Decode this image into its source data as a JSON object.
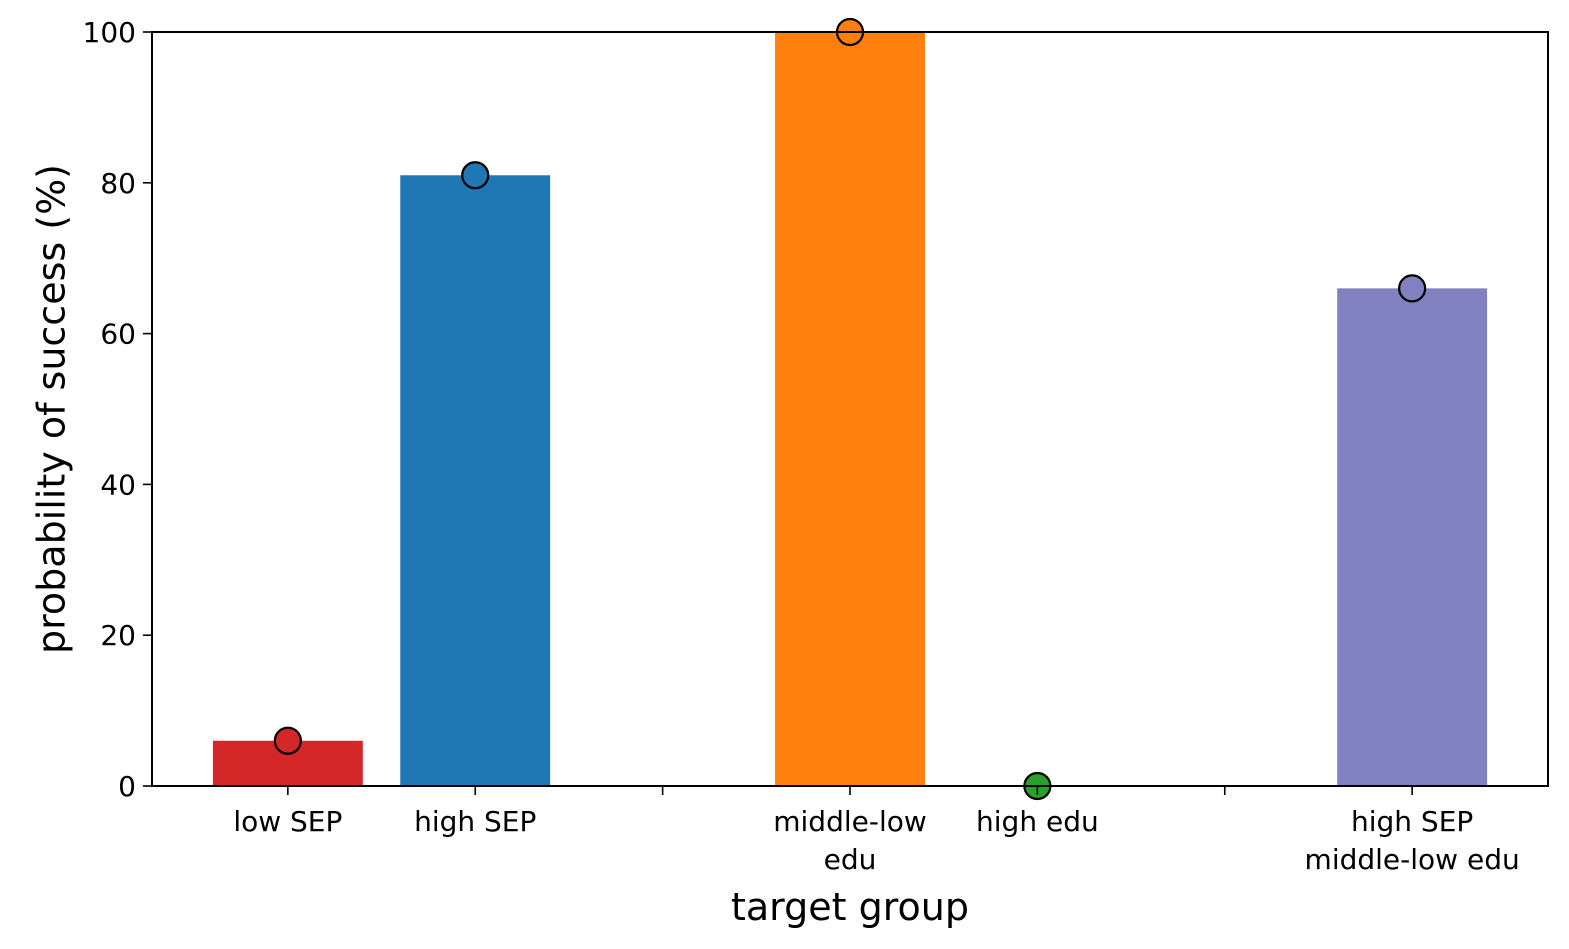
{
  "chart_data": {
    "type": "bar",
    "xlabel": "target group",
    "ylabel": "probability of success (%)",
    "ylim": [
      0,
      100
    ],
    "yticks": [
      0,
      20,
      40,
      60,
      80,
      100
    ],
    "grid": false,
    "categories": [
      {
        "label": [
          "low SEP"
        ],
        "value": 6,
        "color": "#d62728"
      },
      {
        "label": [
          "high SEP"
        ],
        "value": 81,
        "color": "#1f77b4"
      },
      {
        "label": [],
        "value": null,
        "color": null
      },
      {
        "label": [
          "middle-low",
          "edu"
        ],
        "value": 100,
        "color": "#ff7f0e"
      },
      {
        "label": [
          "high edu"
        ],
        "value": 0,
        "color": "#2ca02c"
      },
      {
        "label": [],
        "value": null,
        "color": null
      },
      {
        "label": [
          "high SEP",
          "middle-low edu"
        ],
        "value": 66,
        "color": "#8181c1"
      }
    ]
  }
}
